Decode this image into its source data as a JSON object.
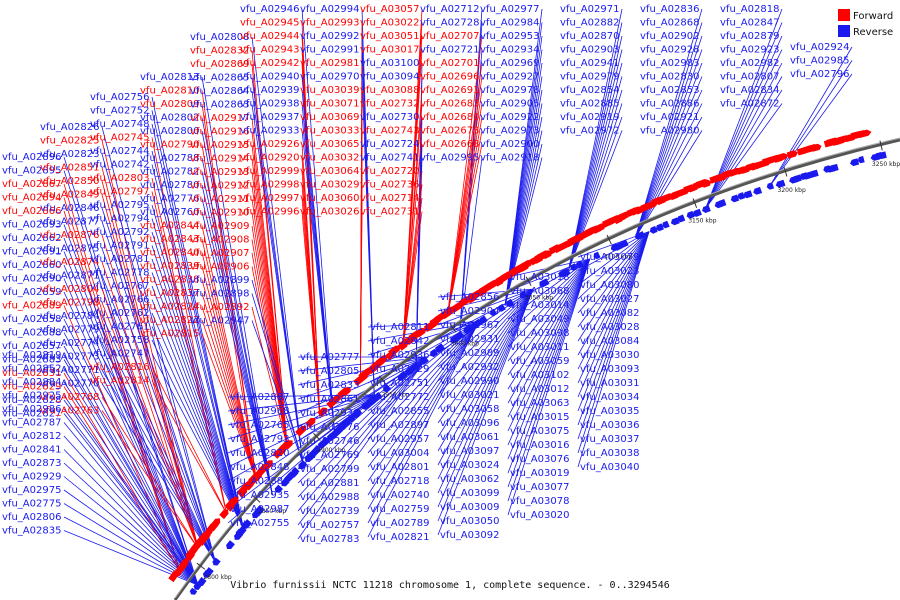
{
  "title": "Vibrio furnissii NCTC 11218 chromosome 1, complete sequence. - 0..3294546",
  "legend": [
    {
      "label": "Forward",
      "color": "#ff0000"
    },
    {
      "label": "Reverse",
      "color": "#1a1aee"
    }
  ],
  "axis_ticks": [
    "2800 kbp",
    "2850 kbp",
    "2900 kbp",
    "2950 kbp",
    "3000 kbp",
    "3050 kbp",
    "3100 kbp",
    "3150 kbp",
    "3200 kbp",
    "3250 kbp"
  ],
  "labels": [
    {
      "t": "vfu_A02896",
      "s": "r"
    },
    {
      "t": "vfu_A02895",
      "s": "r"
    },
    {
      "t": "vfu_A02867",
      "s": "f"
    },
    {
      "t": "vfu_A02894",
      "s": "f"
    },
    {
      "t": "vfu_A02866",
      "s": "f"
    },
    {
      "t": "vfu_A02893",
      "s": "r"
    },
    {
      "t": "vfu_A02862",
      "s": "r"
    },
    {
      "t": "vfu_A02891",
      "s": "r"
    },
    {
      "t": "vfu_A02860",
      "s": "r"
    },
    {
      "t": "vfu_A02890",
      "s": "r"
    },
    {
      "t": "vfu_A02859",
      "s": "r"
    },
    {
      "t": "vfu_A02889",
      "s": "f"
    },
    {
      "t": "vfu_A02858",
      "s": "r"
    },
    {
      "t": "vfu_A02888",
      "s": "r"
    },
    {
      "t": "vfu_A02857",
      "s": "r"
    },
    {
      "t": "vfu_A02883",
      "s": "r"
    },
    {
      "t": "vfu_A02831",
      "s": "f"
    },
    {
      "t": "vfu_A02829",
      "s": "f"
    },
    {
      "t": "vfu_A02828",
      "s": "r"
    },
    {
      "t": "vfu_A02827",
      "s": "r"
    },
    {
      "t": "vfu_A02826",
      "s": "r"
    },
    {
      "t": "vfu_A02825",
      "s": "f"
    },
    {
      "t": "vfu_A02823",
      "s": "r"
    },
    {
      "t": "vfu_A02851",
      "s": "f"
    },
    {
      "t": "vfu_A02850",
      "s": "f"
    },
    {
      "t": "vfu_A02849",
      "s": "f"
    },
    {
      "t": "vfu_A02846",
      "s": "r"
    },
    {
      "t": "vfu_A02877",
      "s": "r"
    },
    {
      "t": "vfu_A02876",
      "s": "f"
    },
    {
      "t": "vfu_A02875",
      "s": "r"
    },
    {
      "t": "vfu_A02874",
      "s": "f"
    },
    {
      "t": "vfu_A02871",
      "s": "r"
    },
    {
      "t": "vfu_A02804",
      "s": "f"
    },
    {
      "t": "vfu_A02798",
      "s": "f"
    },
    {
      "t": "vfu_A02784",
      "s": "r"
    },
    {
      "t": "vfu_A02779",
      "s": "r"
    },
    {
      "t": "vfu_A02774",
      "s": "r"
    },
    {
      "t": "vfu_A02773",
      "s": "r"
    },
    {
      "t": "vfu_A02771",
      "s": "r"
    },
    {
      "t": "vfu_A02770",
      "s": "r"
    },
    {
      "t": "vfu_A02768",
      "s": "f"
    },
    {
      "t": "vfu_A02763",
      "s": "f"
    },
    {
      "t": "vfu_A02756",
      "s": "r"
    },
    {
      "t": "vfu_A02752",
      "s": "r"
    },
    {
      "t": "vfu_A02748",
      "s": "r"
    },
    {
      "t": "vfu_A02745",
      "s": "f"
    },
    {
      "t": "vfu_A02744",
      "s": "r"
    },
    {
      "t": "vfu_A02742",
      "s": "r"
    },
    {
      "t": "vfu_A02803",
      "s": "f"
    },
    {
      "t": "vfu_A02797",
      "s": "f"
    },
    {
      "t": "vfu_A02795",
      "s": "r"
    },
    {
      "t": "vfu_A02794",
      "s": "r"
    },
    {
      "t": "vfu_A02792",
      "s": "r"
    },
    {
      "t": "vfu_A02791",
      "s": "r"
    },
    {
      "t": "vfu_A02781",
      "s": "r"
    },
    {
      "t": "vfu_A02778",
      "s": "r"
    },
    {
      "t": "vfu_A02767",
      "s": "r"
    },
    {
      "t": "vfu_A02766",
      "s": "r"
    },
    {
      "t": "vfu_A02762",
      "s": "r"
    },
    {
      "t": "vfu_A02761",
      "s": "r"
    },
    {
      "t": "vfu_A02758",
      "s": "r"
    },
    {
      "t": "vfu_A02747",
      "s": "r"
    },
    {
      "t": "vfu_A02816",
      "s": "f"
    },
    {
      "t": "vfu_A02814",
      "s": "f"
    },
    {
      "t": "vfu_A02813",
      "s": "r"
    },
    {
      "t": "vfu_A02810",
      "s": "f"
    },
    {
      "t": "vfu_A02809",
      "s": "f"
    },
    {
      "t": "vfu_A02802",
      "s": "r"
    },
    {
      "t": "vfu_A02800",
      "s": "r"
    },
    {
      "t": "vfu_A02790",
      "s": "f"
    },
    {
      "t": "vfu_A02788",
      "s": "r"
    },
    {
      "t": "vfu_A02782",
      "s": "r"
    },
    {
      "t": "vfu_A02780",
      "s": "r"
    },
    {
      "t": "vfu_A02776",
      "s": "r"
    },
    {
      "t": "vfu_A02760",
      "s": "r"
    },
    {
      "t": "vfu_A02844",
      "s": "f"
    },
    {
      "t": "vfu_A02843",
      "s": "f"
    },
    {
      "t": "vfu_A02840",
      "s": "f"
    },
    {
      "t": "vfu_A02839",
      "s": "f"
    },
    {
      "t": "vfu_A02838",
      "s": "f"
    },
    {
      "t": "vfu_A02837",
      "s": "f"
    },
    {
      "t": "vfu_A02824",
      "s": "f"
    },
    {
      "t": "vfu_A02822",
      "s": "f"
    },
    {
      "t": "vfu_A02815",
      "s": "f"
    },
    {
      "t": "vfu_A02808",
      "s": "r"
    },
    {
      "t": "vfu_A02832",
      "s": "f"
    },
    {
      "t": "vfu_A02869",
      "s": "f"
    },
    {
      "t": "vfu_A02865",
      "s": "r"
    },
    {
      "t": "vfu_A02864",
      "s": "r"
    },
    {
      "t": "vfu_A02863",
      "s": "r"
    },
    {
      "t": "vfu_A02917",
      "s": "f"
    },
    {
      "t": "vfu_A02916",
      "s": "f"
    },
    {
      "t": "vfu_A02915",
      "s": "f"
    },
    {
      "t": "vfu_A02914",
      "s": "f"
    },
    {
      "t": "vfu_A02913",
      "s": "f"
    },
    {
      "t": "vfu_A02912",
      "s": "f"
    },
    {
      "t": "vfu_A02911",
      "s": "f"
    },
    {
      "t": "vfu_A02910",
      "s": "f"
    },
    {
      "t": "vfu_A02909",
      "s": "f"
    },
    {
      "t": "vfu_A02908",
      "s": "f"
    },
    {
      "t": "vfu_A02907",
      "s": "f"
    },
    {
      "t": "vfu_A02906",
      "s": "f"
    },
    {
      "t": "vfu_A02899",
      "s": "r"
    },
    {
      "t": "vfu_A02898",
      "s": "r"
    },
    {
      "t": "vfu_A02892",
      "s": "f"
    },
    {
      "t": "vfu_A02947",
      "s": "r"
    },
    {
      "t": "vfu_A02946",
      "s": "r"
    },
    {
      "t": "vfu_A02945",
      "s": "f"
    },
    {
      "t": "vfu_A02944",
      "s": "f"
    },
    {
      "t": "vfu_A02943",
      "s": "f"
    },
    {
      "t": "vfu_A02942",
      "s": "f"
    },
    {
      "t": "vfu_A02940",
      "s": "r"
    },
    {
      "t": "vfu_A02939",
      "s": "r"
    },
    {
      "t": "vfu_A02938",
      "s": "r"
    },
    {
      "t": "vfu_A02937",
      "s": "r"
    },
    {
      "t": "vfu_A02933",
      "s": "r"
    },
    {
      "t": "vfu_A02926",
      "s": "f"
    },
    {
      "t": "vfu_A02920",
      "s": "f"
    },
    {
      "t": "vfu_A02999",
      "s": "f"
    },
    {
      "t": "vfu_A02998",
      "s": "f"
    },
    {
      "t": "vfu_A02997",
      "s": "f"
    },
    {
      "t": "vfu_A02996",
      "s": "f"
    },
    {
      "t": "vfu_A02994",
      "s": "r"
    },
    {
      "t": "vfu_A02993",
      "s": "f"
    },
    {
      "t": "vfu_A02992",
      "s": "r"
    },
    {
      "t": "vfu_A02991",
      "s": "r"
    },
    {
      "t": "vfu_A02981",
      "s": "f"
    },
    {
      "t": "vfu_A02970",
      "s": "r"
    },
    {
      "t": "vfu_A03039",
      "s": "f"
    },
    {
      "t": "vfu_A03071",
      "s": "f"
    },
    {
      "t": "vfu_A03069",
      "s": "f"
    },
    {
      "t": "vfu_A03033",
      "s": "f"
    },
    {
      "t": "vfu_A03065",
      "s": "f"
    },
    {
      "t": "vfu_A03032",
      "s": "f"
    },
    {
      "t": "vfu_A03064",
      "s": "f"
    },
    {
      "t": "vfu_A03029",
      "s": "f"
    },
    {
      "t": "vfu_A03060",
      "s": "f"
    },
    {
      "t": "vfu_A03026",
      "s": "f"
    },
    {
      "t": "vfu_A03057",
      "s": "f"
    },
    {
      "t": "vfu_A03022",
      "s": "f"
    },
    {
      "t": "vfu_A03051",
      "s": "f"
    },
    {
      "t": "vfu_A03017",
      "s": "f"
    },
    {
      "t": "vfu_A03100",
      "s": "r"
    },
    {
      "t": "vfu_A03094",
      "s": "r"
    },
    {
      "t": "vfu_A03088",
      "s": "f"
    },
    {
      "t": "vfu_A02732",
      "s": "f"
    },
    {
      "t": "vfu_A02730",
      "s": "r"
    },
    {
      "t": "vfu_A02743",
      "s": "f"
    },
    {
      "t": "vfu_A02724",
      "s": "r"
    },
    {
      "t": "vfu_A02741",
      "s": "r"
    },
    {
      "t": "vfu_A02720",
      "s": "f"
    },
    {
      "t": "vfu_A02736",
      "s": "f"
    },
    {
      "t": "vfu_A02714",
      "s": "f"
    },
    {
      "t": "vfu_A02731",
      "s": "f"
    },
    {
      "t": "vfu_A02712",
      "s": "r"
    },
    {
      "t": "vfu_A02728",
      "s": "r"
    },
    {
      "t": "vfu_A02707",
      "s": "f"
    },
    {
      "t": "vfu_A02721",
      "s": "r"
    },
    {
      "t": "vfu_A02701",
      "s": "f"
    },
    {
      "t": "vfu_A02696",
      "s": "f"
    },
    {
      "t": "vfu_A02691",
      "s": "f"
    },
    {
      "t": "vfu_A02683",
      "s": "f"
    },
    {
      "t": "vfu_A02680",
      "s": "f"
    },
    {
      "t": "vfu_A02673",
      "s": "f"
    },
    {
      "t": "vfu_A02668",
      "s": "f"
    },
    {
      "t": "vfu_A02995",
      "s": "r"
    },
    {
      "t": "vfu_A02977",
      "s": "r"
    },
    {
      "t": "vfu_A02984",
      "s": "r"
    },
    {
      "t": "vfu_A02953",
      "s": "r"
    },
    {
      "t": "vfu_A02934",
      "s": "r"
    },
    {
      "t": "vfu_A02969",
      "s": "r"
    },
    {
      "t": "vfu_A02927",
      "s": "r"
    },
    {
      "t": "vfu_A02978",
      "s": "r"
    },
    {
      "t": "vfu_A02905",
      "s": "r"
    },
    {
      "t": "vfu_A02922",
      "s": "r"
    },
    {
      "t": "vfu_A02973",
      "s": "r"
    },
    {
      "t": "vfu_A02900",
      "s": "r"
    },
    {
      "t": "vfu_A02918",
      "s": "r"
    },
    {
      "t": "vfu_A02971",
      "s": "r"
    },
    {
      "t": "vfu_A02882",
      "s": "r"
    },
    {
      "t": "vfu_A02870",
      "s": "r"
    },
    {
      "t": "vfu_A02903",
      "s": "r"
    },
    {
      "t": "vfu_A02941",
      "s": "r"
    },
    {
      "t": "vfu_A02979",
      "s": "r"
    },
    {
      "t": "vfu_A02854",
      "s": "r"
    },
    {
      "t": "vfu_A02885",
      "s": "r"
    },
    {
      "t": "vfu_A02919",
      "s": "r"
    },
    {
      "t": "vfu_A02972",
      "s": "r"
    },
    {
      "t": "vfu_A02836",
      "s": "r"
    },
    {
      "t": "vfu_A02868",
      "s": "r"
    },
    {
      "t": "vfu_A02902",
      "s": "r"
    },
    {
      "t": "vfu_A02928",
      "s": "r"
    },
    {
      "t": "vfu_A02983",
      "s": "r"
    },
    {
      "t": "vfu_A02830",
      "s": "r"
    },
    {
      "t": "vfu_A02853",
      "s": "r"
    },
    {
      "t": "vfu_A02886",
      "s": "r"
    },
    {
      "t": "vfu_A02921",
      "s": "r"
    },
    {
      "t": "vfu_A02980",
      "s": "r"
    },
    {
      "t": "vfu_A02818",
      "s": "r"
    },
    {
      "t": "vfu_A02847",
      "s": "r"
    },
    {
      "t": "vfu_A02879",
      "s": "r"
    },
    {
      "t": "vfu_A02923",
      "s": "r"
    },
    {
      "t": "vfu_A02982",
      "s": "r"
    },
    {
      "t": "vfu_A02807",
      "s": "r"
    },
    {
      "t": "vfu_A02834",
      "s": "r"
    },
    {
      "t": "vfu_A02872",
      "s": "r"
    },
    {
      "t": "vfu_A02924",
      "s": "r"
    },
    {
      "t": "vfu_A02985",
      "s": "r"
    },
    {
      "t": "vfu_A02796",
      "s": "r"
    },
    {
      "t": "vfu_A02819",
      "s": "r"
    },
    {
      "t": "vfu_A02852",
      "s": "r"
    },
    {
      "t": "vfu_A02884",
      "s": "r"
    },
    {
      "t": "vfu_A02925",
      "s": "r"
    },
    {
      "t": "vfu_A02986",
      "s": "r"
    },
    {
      "t": "vfu_A02787",
      "s": "r"
    },
    {
      "t": "vfu_A02812",
      "s": "r"
    },
    {
      "t": "vfu_A02841",
      "s": "r"
    },
    {
      "t": "vfu_A02873",
      "s": "r"
    },
    {
      "t": "vfu_A02929",
      "s": "r"
    },
    {
      "t": "vfu_A02975",
      "s": "r"
    },
    {
      "t": "vfu_A02775",
      "s": "r"
    },
    {
      "t": "vfu_A02806",
      "s": "r"
    },
    {
      "t": "vfu_A02835",
      "s": "r"
    },
    {
      "t": "vfu_A02887",
      "s": "r"
    },
    {
      "t": "vfu_A02968",
      "s": "r"
    },
    {
      "t": "vfu_A02765",
      "s": "r"
    },
    {
      "t": "vfu_A02793",
      "s": "r"
    },
    {
      "t": "vfu_A02820",
      "s": "r"
    },
    {
      "t": "vfu_A02848",
      "s": "r"
    },
    {
      "t": "vfu_A02880",
      "s": "r"
    },
    {
      "t": "vfu_A02935",
      "s": "r"
    },
    {
      "t": "vfu_A02987",
      "s": "r"
    },
    {
      "t": "vfu_A02755",
      "s": "r"
    },
    {
      "t": "vfu_A02777",
      "s": "r"
    },
    {
      "t": "vfu_A02805",
      "s": "r"
    },
    {
      "t": "vfu_A02833",
      "s": "r"
    },
    {
      "t": "vfu_A02861",
      "s": "r"
    },
    {
      "t": "vfu_A02930",
      "s": "r"
    },
    {
      "t": "vfu_A02976",
      "s": "r"
    },
    {
      "t": "vfu_A02746",
      "s": "r"
    },
    {
      "t": "vfu_A02769",
      "s": "r"
    },
    {
      "t": "vfu_A02799",
      "s": "r"
    },
    {
      "t": "vfu_A02881",
      "s": "r"
    },
    {
      "t": "vfu_A02988",
      "s": "r"
    },
    {
      "t": "vfu_A02739",
      "s": "r"
    },
    {
      "t": "vfu_A02757",
      "s": "r"
    },
    {
      "t": "vfu_A02783",
      "s": "r"
    },
    {
      "t": "vfu_A02811",
      "s": "r"
    },
    {
      "t": "vfu_A02842",
      "s": "r"
    },
    {
      "t": "vfu_A02936",
      "s": "r"
    },
    {
      "t": "vfu_A02729",
      "s": "r"
    },
    {
      "t": "vfu_A02751",
      "s": "r"
    },
    {
      "t": "vfu_A02772",
      "s": "r"
    },
    {
      "t": "vfu_A02855",
      "s": "r"
    },
    {
      "t": "vfu_A02897",
      "s": "r"
    },
    {
      "t": "vfu_A02957",
      "s": "r"
    },
    {
      "t": "vfu_A03004",
      "s": "r"
    },
    {
      "t": "vfu_A02801",
      "s": "r"
    },
    {
      "t": "vfu_A02718",
      "s": "r"
    },
    {
      "t": "vfu_A02740",
      "s": "r"
    },
    {
      "t": "vfu_A02759",
      "s": "r"
    },
    {
      "t": "vfu_A02789",
      "s": "r"
    },
    {
      "t": "vfu_A02821",
      "s": "r"
    },
    {
      "t": "vfu_A02856",
      "s": "r"
    },
    {
      "t": "vfu_A02904",
      "s": "r"
    },
    {
      "t": "vfu_A02967",
      "s": "r"
    },
    {
      "t": "vfu_A02931",
      "s": "r"
    },
    {
      "t": "vfu_A02989",
      "s": "r"
    },
    {
      "t": "vfu_A02932",
      "s": "r"
    },
    {
      "t": "vfu_A02990",
      "s": "r"
    },
    {
      "t": "vfu_A03021",
      "s": "r"
    },
    {
      "t": "vfu_A03058",
      "s": "r"
    },
    {
      "t": "vfu_A03096",
      "s": "r"
    },
    {
      "t": "vfu_A03061",
      "s": "r"
    },
    {
      "t": "vfu_A03097",
      "s": "r"
    },
    {
      "t": "vfu_A03024",
      "s": "r"
    },
    {
      "t": "vfu_A03062",
      "s": "r"
    },
    {
      "t": "vfu_A03099",
      "s": "r"
    },
    {
      "t": "vfu_A03009",
      "s": "r"
    },
    {
      "t": "vfu_A03050",
      "s": "r"
    },
    {
      "t": "vfu_A03092",
      "s": "r"
    },
    {
      "t": "vfu_A03018",
      "s": "r"
    },
    {
      "t": "vfu_A03068",
      "s": "r"
    },
    {
      "t": "vfu_A03014",
      "s": "r"
    },
    {
      "t": "vfu_A03049",
      "s": "r"
    },
    {
      "t": "vfu_A03098",
      "s": "r"
    },
    {
      "t": "vfu_A03011",
      "s": "r"
    },
    {
      "t": "vfu_A03059",
      "s": "r"
    },
    {
      "t": "vfu_A03102",
      "s": "r"
    },
    {
      "t": "vfu_A03012",
      "s": "r"
    },
    {
      "t": "vfu_A03063",
      "s": "r"
    },
    {
      "t": "vfu_A03015",
      "s": "r"
    },
    {
      "t": "vfu_A03075",
      "s": "r"
    },
    {
      "t": "vfu_A03016",
      "s": "r"
    },
    {
      "t": "vfu_A03076",
      "s": "r"
    },
    {
      "t": "vfu_A03019",
      "s": "r"
    },
    {
      "t": "vfu_A03077",
      "s": "r"
    },
    {
      "t": "vfu_A03078",
      "s": "r"
    },
    {
      "t": "vfu_A03020",
      "s": "r"
    },
    {
      "t": "vfu_A03079",
      "s": "r"
    },
    {
      "t": "vfu_A03023",
      "s": "r"
    },
    {
      "t": "vfu_A03080",
      "s": "r"
    },
    {
      "t": "vfu_A03027",
      "s": "r"
    },
    {
      "t": "vfu_A03082",
      "s": "r"
    },
    {
      "t": "vfu_A03028",
      "s": "r"
    },
    {
      "t": "vfu_A03084",
      "s": "r"
    },
    {
      "t": "vfu_A03030",
      "s": "r"
    },
    {
      "t": "vfu_A03093",
      "s": "r"
    },
    {
      "t": "vfu_A03031",
      "s": "r"
    },
    {
      "t": "vfu_A03034",
      "s": "r"
    },
    {
      "t": "vfu_A03035",
      "s": "r"
    },
    {
      "t": "vfu_A03036",
      "s": "r"
    },
    {
      "t": "vfu_A03037",
      "s": "r"
    },
    {
      "t": "vfu_A03038",
      "s": "r"
    },
    {
      "t": "vfu_A03040",
      "s": "r"
    }
  ]
}
